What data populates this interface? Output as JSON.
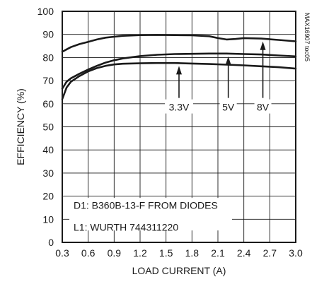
{
  "chart_data": {
    "type": "line",
    "title": "",
    "xlabel": "LOAD CURRENT (A)",
    "ylabel": "EFFICIENCY (%)",
    "xlim": [
      0.3,
      3.0
    ],
    "ylim": [
      0,
      100
    ],
    "grid": true,
    "x_ticks": [
      "0.3",
      "0.6",
      "0.9",
      "1.2",
      "1.5",
      "1.8",
      "2.1",
      "2.4",
      "2.7",
      "3.0"
    ],
    "y_ticks": [
      "0",
      "10",
      "20",
      "30",
      "40",
      "50",
      "60",
      "70",
      "80",
      "90",
      "100"
    ],
    "series": [
      {
        "name": "8V",
        "x": [
          0.3,
          0.4,
          0.5,
          0.6,
          0.7,
          0.8,
          0.9,
          1.0,
          1.2,
          1.4,
          1.6,
          1.8,
          2.0,
          2.1,
          2.2,
          2.3,
          2.4,
          2.6,
          2.8,
          3.0
        ],
        "y": [
          82.5,
          84.5,
          85.8,
          86.8,
          87.8,
          88.6,
          89.0,
          89.4,
          89.7,
          89.8,
          89.7,
          89.6,
          89.2,
          88.4,
          87.8,
          88.0,
          88.4,
          88.2,
          87.6,
          87.0
        ]
      },
      {
        "name": "5V",
        "x": [
          0.3,
          0.35,
          0.4,
          0.5,
          0.6,
          0.7,
          0.8,
          0.9,
          1.0,
          1.2,
          1.4,
          1.6,
          1.8,
          2.0,
          2.2,
          2.4,
          2.6,
          2.8,
          3.0
        ],
        "y": [
          66.5,
          69.5,
          71.0,
          73.0,
          74.8,
          76.4,
          77.8,
          78.8,
          79.6,
          80.6,
          81.2,
          81.5,
          81.6,
          81.7,
          81.7,
          81.5,
          81.3,
          80.9,
          80.5
        ]
      },
      {
        "name": "3.3V",
        "x": [
          0.3,
          0.35,
          0.4,
          0.5,
          0.6,
          0.7,
          0.8,
          0.9,
          1.0,
          1.2,
          1.4,
          1.6,
          1.8,
          2.0,
          2.2,
          2.4,
          2.6,
          2.8,
          3.0
        ],
        "y": [
          62.0,
          67.0,
          69.5,
          72.0,
          74.0,
          75.4,
          76.4,
          77.0,
          77.3,
          77.5,
          77.6,
          77.6,
          77.4,
          77.2,
          76.9,
          76.6,
          76.2,
          75.8,
          75.2
        ]
      }
    ],
    "callouts": [
      {
        "label": "3.3V",
        "series": "3.3V",
        "x": 1.65
      },
      {
        "label": "5V",
        "series": "5V",
        "x": 2.22
      },
      {
        "label": "8V",
        "series": "8V",
        "x": 2.62
      }
    ],
    "annotations": [
      "D1: B360B-13-F FROM DIODES",
      "L1:  WURTH 744311220"
    ],
    "figure_id": "MAX16907 toc05"
  }
}
